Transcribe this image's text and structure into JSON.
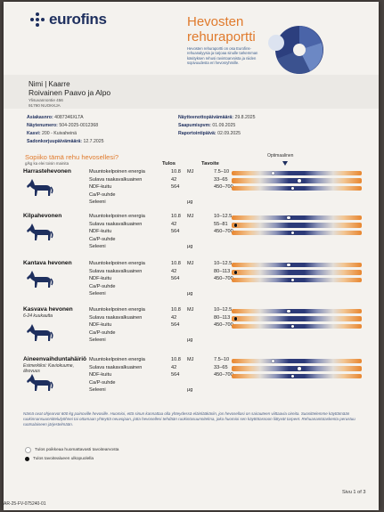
{
  "header": {
    "logo_text": "eurofins",
    "title_line1": "Hevosten",
    "title_line2": "rehuraportti",
    "intro": "Hevosten rehuraportti on osa Eurofins-rehuanalyysia ja tarjoaa sinulle tarkemman käsityksen rehusi ravintoarvoista ja niiden sopivuudesta eri hevosryhmille."
  },
  "customer": {
    "name": "Nimi | Kaarre",
    "farm": "Roivainen Paavo ja Alpo",
    "street": "Ylisuvannontie 456",
    "city": "91790 NUOKKJA"
  },
  "meta": {
    "customer_no_label": "Asiakasnro:",
    "customer_no": "4087346XLTA",
    "sample_no_label": "Näytenumero:",
    "sample_no": "504-2025-0012368",
    "feed_label": "Kasvi:",
    "feed": "200 - Kuivaheinä",
    "sealed_label": "Sadonkorjuupäivämäärä:",
    "sealed": "12.7.2025",
    "sampling_label": "Näytteenottopäivämäärä:",
    "sampling": "29.8.2025",
    "received_label": "Saapumispvm:",
    "received": "01.09.2025",
    "report_label": "Raportointipäivä:",
    "report": "02.09.2025"
  },
  "table": {
    "section_title": "Sopiiko tämä rehu hevosellesi?",
    "section_sub": "g/kg ka elei toisin mainita",
    "col_results": "Tulos",
    "col_targets": "Tavoite",
    "optimal_label": "Optimaalinen"
  },
  "groups": [
    {
      "title": "Harrastehevonen",
      "sub": "",
      "rows": [
        {
          "label": "Muuntokelpoinen energia",
          "value": "10.8",
          "unit": "MJ",
          "target": "7.5–10",
          "marker": 0.32,
          "marker_color": "white"
        },
        {
          "label": "Sulava raakavalkuainen",
          "value": "42",
          "unit": "",
          "target": "33–65",
          "marker": 0.52,
          "marker_color": "white"
        },
        {
          "label": "NDF-kuitu",
          "value": "564",
          "unit": "",
          "target": "450–700",
          "marker": 0.47,
          "marker_color": "white"
        },
        {
          "label": "Ca/P-suhde",
          "value": "",
          "unit": "",
          "target": "",
          "marker": null,
          "marker_color": ""
        },
        {
          "label": "Seleeni",
          "value": "",
          "unit": "µg",
          "target": "",
          "marker": null,
          "marker_color": ""
        }
      ]
    },
    {
      "title": "Kilpahevonen",
      "sub": "",
      "rows": [
        {
          "label": "Muuntokelpoinen energia",
          "value": "10.8",
          "unit": "MJ",
          "target": "10–12.5",
          "marker": 0.44,
          "marker_color": "white"
        },
        {
          "label": "Sulava raakavalkuainen",
          "value": "42",
          "unit": "",
          "target": "55–81",
          "marker": 0.03,
          "marker_color": "black"
        },
        {
          "label": "NDF-kuitu",
          "value": "564",
          "unit": "",
          "target": "450–700",
          "marker": 0.47,
          "marker_color": "white"
        },
        {
          "label": "Ca/P-suhde",
          "value": "",
          "unit": "",
          "target": "",
          "marker": null,
          "marker_color": ""
        },
        {
          "label": "Seleeni",
          "value": "",
          "unit": "µg",
          "target": "",
          "marker": null,
          "marker_color": ""
        }
      ]
    },
    {
      "title": "Kantava hevonen",
      "sub": "",
      "rows": [
        {
          "label": "Muuntokelpoinen energia",
          "value": "10.8",
          "unit": "MJ",
          "target": "10–12.5",
          "marker": 0.44,
          "marker_color": "white"
        },
        {
          "label": "Sulava raakavalkuainen",
          "value": "42",
          "unit": "",
          "target": "80–113",
          "marker": 0.03,
          "marker_color": "black"
        },
        {
          "label": "NDF-kuitu",
          "value": "564",
          "unit": "",
          "target": "450–700",
          "marker": 0.47,
          "marker_color": "white"
        },
        {
          "label": "Ca/P-suhde",
          "value": "",
          "unit": "",
          "target": "",
          "marker": null,
          "marker_color": ""
        },
        {
          "label": "Seleeni",
          "value": "",
          "unit": "µg",
          "target": "",
          "marker": null,
          "marker_color": ""
        }
      ]
    },
    {
      "title": "Kasvava hevonen",
      "sub": "6-24 kuukautta",
      "rows": [
        {
          "label": "Muuntokelpoinen energia",
          "value": "10.8",
          "unit": "MJ",
          "target": "10–12.5",
          "marker": 0.44,
          "marker_color": "white"
        },
        {
          "label": "Sulava raakavalkuainen",
          "value": "42",
          "unit": "",
          "target": "80–113",
          "marker": 0.03,
          "marker_color": "black"
        },
        {
          "label": "NDF-kuitu",
          "value": "564",
          "unit": "",
          "target": "450–700",
          "marker": 0.47,
          "marker_color": "white"
        },
        {
          "label": "Ca/P-suhde",
          "value": "",
          "unit": "",
          "target": "",
          "marker": null,
          "marker_color": ""
        },
        {
          "label": "Seleeni",
          "value": "",
          "unit": "µg",
          "target": "",
          "marker": null,
          "marker_color": ""
        }
      ]
    },
    {
      "title": "Aineenvaihduntahäiriö",
      "sub": "Esimerkiksi: Kaviokuume, ähovuus",
      "rows": [
        {
          "label": "Muuntokelpoinen energia",
          "value": "10.8",
          "unit": "MJ",
          "target": "7.5–10",
          "marker": 0.32,
          "marker_color": "white"
        },
        {
          "label": "Sulava raakavalkuainen",
          "value": "42",
          "unit": "",
          "target": "33–65",
          "marker": 0.52,
          "marker_color": "white"
        },
        {
          "label": "NDF-kuitu",
          "value": "564",
          "unit": "",
          "target": "450–700",
          "marker": 0.47,
          "marker_color": "white"
        },
        {
          "label": "Ca/P-suhde",
          "value": "",
          "unit": "",
          "target": "",
          "marker": null,
          "marker_color": ""
        },
        {
          "label": "Seleeni",
          "value": "",
          "unit": "µg",
          "target": "",
          "marker": null,
          "marker_color": ""
        }
      ]
    }
  ],
  "footer": {
    "note": "Nämä ovat ohjearvot 600 kg painoville hevosille. Huomioi, että sinun kannattaa olla yhteydessä eläinlääkäriin, jos hevosellasi on sairauteen viittaavia oireita. Suosittelemme käyttämään ruokinnansuunnittelulyöhnei tai ottamaan yhteyttä neuvojaan, jotta hevosellesi tehdään ruokintasuunnitelma, joka huomioi sen käyttötassoon liittyvät tarpeet. Rehuanantotaskenta perustuu ruotsalaiseen järjestelmään.",
    "legend_white": "Tulos poikkeaa huomattavasti tavoitearvosta",
    "legend_black": "Tulos tavoitealueen ulkopuolella",
    "page": "Sivu 1 of 3",
    "doc_id": "AR-25-FV-075240-01"
  },
  "colors": {
    "brand_blue": "#1e2f5e",
    "accent_orange": "#e07a2c"
  }
}
